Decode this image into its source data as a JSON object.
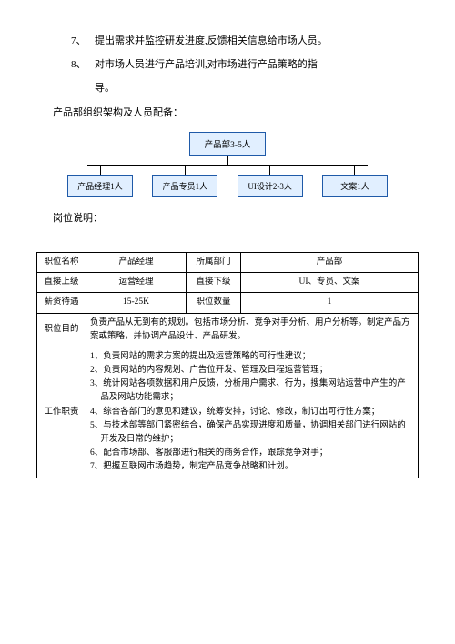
{
  "list": {
    "item7_num": "7、",
    "item7_text": "提出需求并监控研发进度,反馈相关信息给市场人员。",
    "item8_num": "8、",
    "item8_text": "对市场人员进行产品培训,对市场进行产品策略的指",
    "item8_cont": "导。"
  },
  "section1": "产品部组织架构及人员配备：",
  "org": {
    "top": "产品部3-5人",
    "n1": "产品经理1人",
    "n2": "产品专员1人",
    "n3": "UI设计2-3人",
    "n4": "文案1人"
  },
  "section2": "岗位说明：",
  "table": {
    "r1c1": "职位名称",
    "r1c2": "产品经理",
    "r1c3": "所属部门",
    "r1c4": "产品部",
    "r2c1": "直接上级",
    "r2c2": "运营经理",
    "r2c3": "直接下级",
    "r2c4": "UI、专员、文案",
    "r3c1": "薪资待遇",
    "r3c2": "15-25K",
    "r3c3": "职位数量",
    "r3c4": "1",
    "r4c1": "职位目的",
    "r4rest": "负责产品从无到有的规划。包括市场分析、竞争对手分析、用户分析等。制定产品方案或策略，并协调产品设计、产品研发。",
    "r5c1": "工作职责",
    "duties": {
      "d1": "1、负责网站的需求方案的提出及运营策略的可行性建议；",
      "d2": "2、负责网站的内容规划、广告位开发、管理及日程运营管理；",
      "d3": "3、统计网站各项数据和用户反馈，分析用户需求、行为，搜集网站运营中产生的产品及网站功能需求；",
      "d4": "4、综合各部门的意见和建议，统筹安排，讨论、修改，制订出可行性方案；",
      "d5": "5、与技术部等部门紧密结合，确保产品实现进度和质量，协调相关部门进行网站的开发及日常的维护；",
      "d6": "6、配合市场部、客服部进行相关的商务合作，跟踪竞争对手；",
      "d7": "7、把握互联网市场趋势，制定产品竞争战略和计划。"
    }
  }
}
